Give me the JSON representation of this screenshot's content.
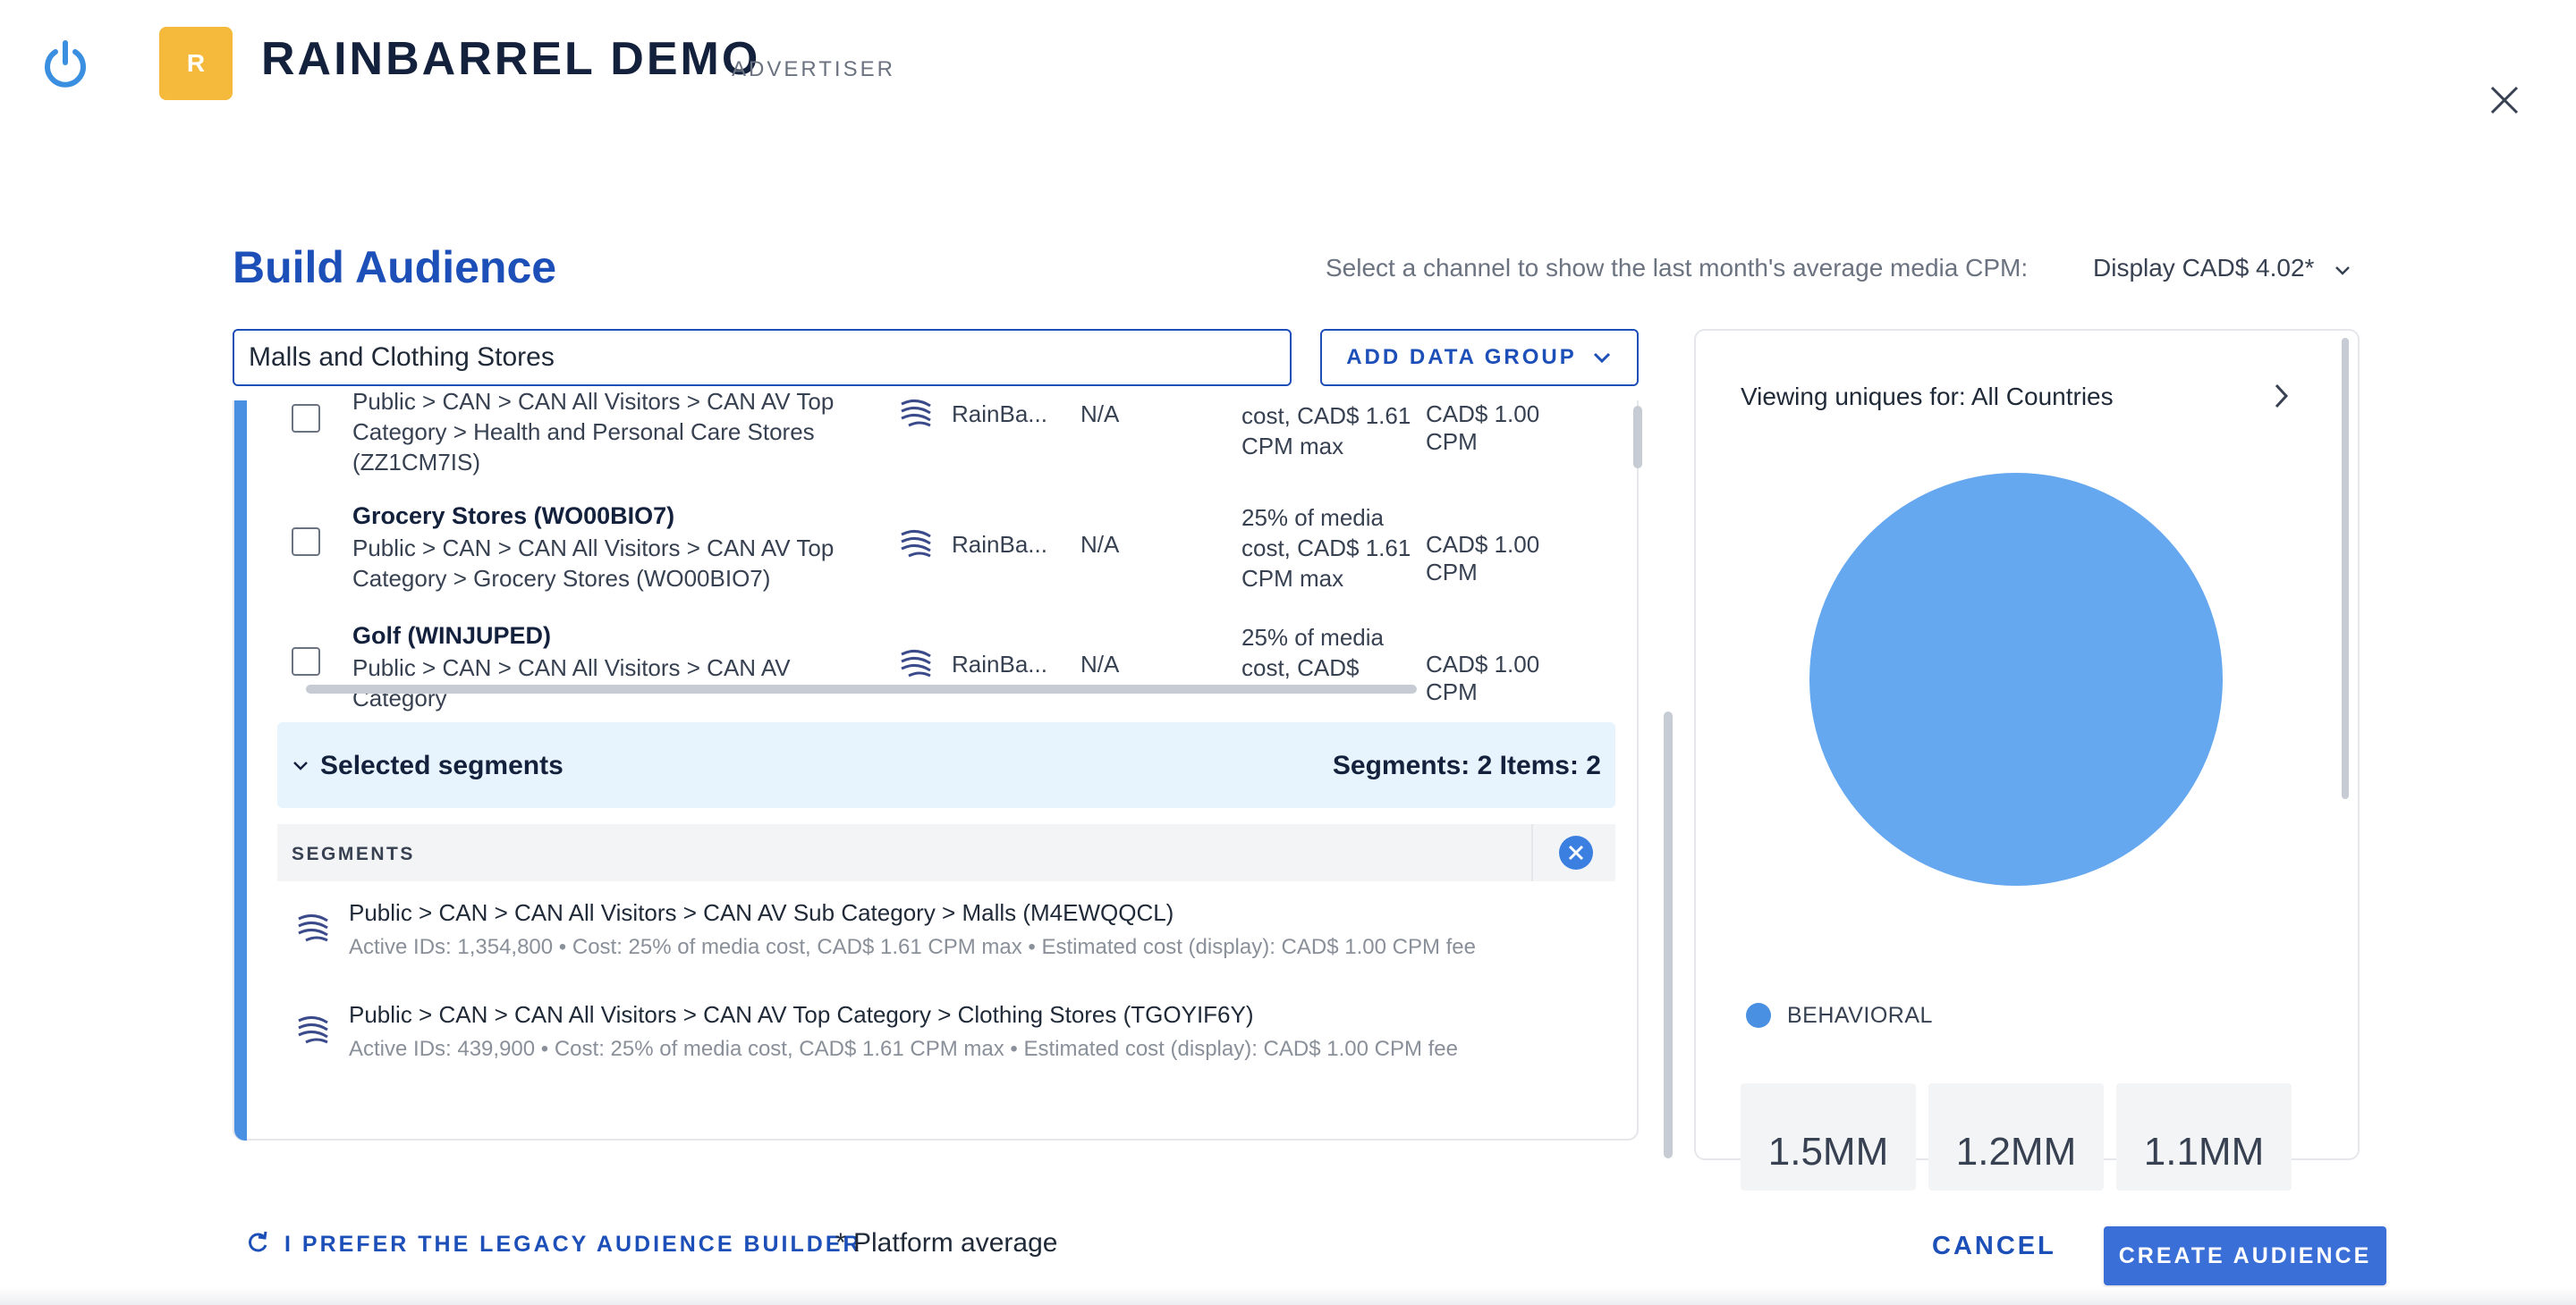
{
  "header": {
    "avatar_letter": "R",
    "brand": "RAINBARREL DEMO",
    "brand_role": "ADVERTISER"
  },
  "title": "Build Audience",
  "cpm": {
    "label": "Select a channel to show the last month's average media CPM:",
    "value": "Display CAD$ 4.02*"
  },
  "search": {
    "value": "Malls and Clothing Stores"
  },
  "add_data_group_label": "ADD DATA GROUP",
  "results": [
    {
      "name": "",
      "path": "Public > CAN > CAN All Visitors > CAN AV Top Category > Health and Personal Care Stores (ZZ1CM7IS)",
      "provider": "RainBa...",
      "na": "N/A",
      "cost": "cost, CAD$ 1.61 CPM max",
      "fee": "CAD$ 1.00 CPM"
    },
    {
      "name": "Grocery Stores (WO00BIO7)",
      "path": "Public > CAN > CAN All Visitors > CAN AV Top Category > Grocery Stores (WO00BIO7)",
      "provider": "RainBa...",
      "na": "N/A",
      "cost": "25% of media cost, CAD$ 1.61 CPM max",
      "fee": "CAD$ 1.00 CPM"
    },
    {
      "name": "Golf (WINJUPED)",
      "path": "Public > CAN > CAN All Visitors > CAN AV Category",
      "provider": "RainBa...",
      "na": "N/A",
      "cost": "25% of media cost, CAD$",
      "fee": "CAD$ 1.00 CPM"
    }
  ],
  "selected": {
    "title": "Selected segments",
    "counts": "Segments: 2  Items: 2",
    "column_label": "SEGMENTS",
    "items": [
      {
        "path": "Public > CAN > CAN All Visitors > CAN AV Sub Category > Malls (M4EWQQCL)",
        "meta": "Active IDs: 1,354,800  •  Cost: 25% of media cost, CAD$ 1.61 CPM max  •  Estimated cost (display): CAD$ 1.00 CPM fee"
      },
      {
        "path": "Public > CAN > CAN All Visitors > CAN AV Top Category > Clothing Stores (TGOYIF6Y)",
        "meta": "Active IDs: 439,900  •  Cost: 25% of media cost, CAD$ 1.61 CPM max  •  Estimated cost (display): CAD$ 1.00 CPM fee"
      }
    ]
  },
  "uniques": {
    "label": "Viewing uniques for: All Countries",
    "legend": "BEHAVIORAL",
    "legend_color": "#4a90e2",
    "pie_color": "#66a8f0",
    "stats": [
      "1.5MM",
      "1.2MM",
      "1.1MM"
    ]
  },
  "footer": {
    "legacy": "I PREFER THE LEGACY AUDIENCE BUILDER",
    "platform_note": "* Platform average",
    "cancel": "CANCEL",
    "create": "CREATE AUDIENCE"
  }
}
